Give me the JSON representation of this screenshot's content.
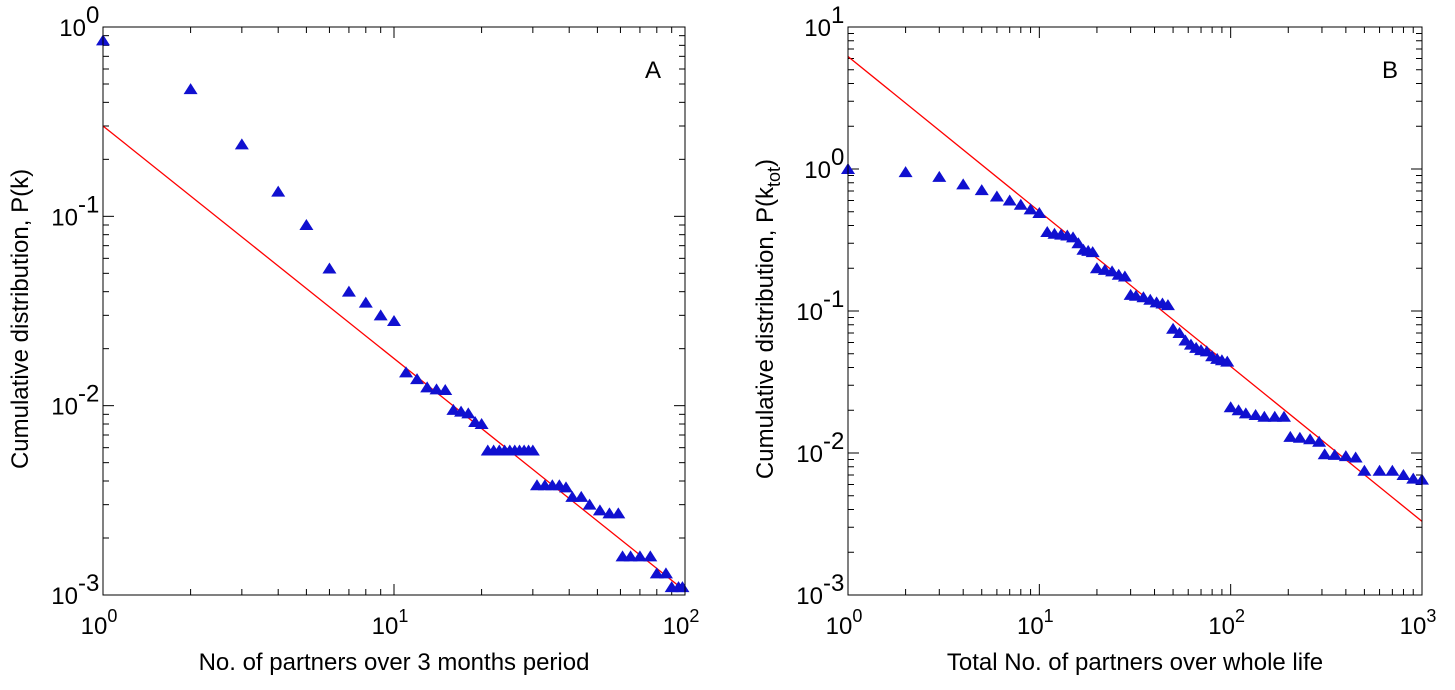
{
  "chart_data": [
    {
      "type": "scatter",
      "panel_label": "A",
      "xlabel": "No. of partners over 3 months period",
      "ylabel": "Cumulative distribution, P(k)",
      "xscale": "log",
      "yscale": "log",
      "xlim": [
        1,
        100
      ],
      "ylim": [
        0.001,
        1
      ],
      "xticks": [
        {
          "base": "10",
          "exp": "0"
        },
        {
          "base": "10",
          "exp": "1"
        },
        {
          "base": "10",
          "exp": "2"
        }
      ],
      "yticks": [
        {
          "base": "10",
          "exp": "-3"
        },
        {
          "base": "10",
          "exp": "-2"
        },
        {
          "base": "10",
          "exp": "-1"
        },
        {
          "base": "10",
          "exp": "0"
        }
      ],
      "marker_color": "#1010d0",
      "line_color": "#ff0000",
      "fit_line": {
        "x": [
          1,
          100
        ],
        "y": [
          0.3,
          0.00105
        ]
      },
      "points": [
        [
          1,
          0.85
        ],
        [
          2,
          0.47
        ],
        [
          3,
          0.24
        ],
        [
          4,
          0.135
        ],
        [
          5,
          0.09
        ],
        [
          6,
          0.053
        ],
        [
          7,
          0.04
        ],
        [
          8,
          0.035
        ],
        [
          9,
          0.03
        ],
        [
          10,
          0.028
        ],
        [
          11,
          0.015
        ],
        [
          12,
          0.0138
        ],
        [
          13,
          0.0125
        ],
        [
          14,
          0.0122
        ],
        [
          15,
          0.0121
        ],
        [
          16,
          0.0095
        ],
        [
          17,
          0.0093
        ],
        [
          18,
          0.0091
        ],
        [
          19,
          0.0082
        ],
        [
          20,
          0.008
        ],
        [
          21,
          0.0058
        ],
        [
          22,
          0.0058
        ],
        [
          23,
          0.0058
        ],
        [
          24,
          0.0058
        ],
        [
          25,
          0.0058
        ],
        [
          26,
          0.0058
        ],
        [
          27,
          0.0058
        ],
        [
          28,
          0.0058
        ],
        [
          29,
          0.0058
        ],
        [
          30,
          0.0058
        ],
        [
          31,
          0.0038
        ],
        [
          33,
          0.0038
        ],
        [
          35,
          0.0038
        ],
        [
          37,
          0.0038
        ],
        [
          39,
          0.0037
        ],
        [
          41,
          0.0033
        ],
        [
          44,
          0.0033
        ],
        [
          47,
          0.003
        ],
        [
          51,
          0.0028
        ],
        [
          55,
          0.0027
        ],
        [
          59,
          0.0027
        ],
        [
          61,
          0.0016
        ],
        [
          65,
          0.0016
        ],
        [
          70,
          0.0016
        ],
        [
          76,
          0.0016
        ],
        [
          80,
          0.0013
        ],
        [
          86,
          0.0013
        ],
        [
          90,
          0.0011
        ],
        [
          95,
          0.0011
        ],
        [
          98,
          0.0011
        ]
      ]
    },
    {
      "type": "scatter",
      "panel_label": "B",
      "xlabel": "Total No. of partners over whole life",
      "ylabel": "Cumulative distribution, P(k",
      "ylabel_sub": "tot",
      "ylabel_end": ")",
      "xscale": "log",
      "yscale": "log",
      "xlim": [
        1,
        1000
      ],
      "ylim": [
        0.001,
        10
      ],
      "xticks": [
        {
          "base": "10",
          "exp": "0"
        },
        {
          "base": "10",
          "exp": "1"
        },
        {
          "base": "10",
          "exp": "2"
        },
        {
          "base": "10",
          "exp": "3"
        }
      ],
      "yticks": [
        {
          "base": "10",
          "exp": "-3"
        },
        {
          "base": "10",
          "exp": "-2"
        },
        {
          "base": "10",
          "exp": "-1"
        },
        {
          "base": "10",
          "exp": "0"
        },
        {
          "base": "10",
          "exp": "1"
        }
      ],
      "marker_color": "#1010d0",
      "line_color": "#ff0000",
      "fit_line": {
        "x": [
          1,
          1000
        ],
        "y": [
          6.2,
          0.0033
        ]
      },
      "points": [
        [
          1,
          1.0
        ],
        [
          2,
          0.95
        ],
        [
          3,
          0.88
        ],
        [
          4,
          0.78
        ],
        [
          5,
          0.71
        ],
        [
          6,
          0.64
        ],
        [
          7,
          0.6
        ],
        [
          8,
          0.56
        ],
        [
          9,
          0.52
        ],
        [
          10,
          0.49
        ],
        [
          11,
          0.36
        ],
        [
          12,
          0.35
        ],
        [
          13,
          0.345
        ],
        [
          14,
          0.34
        ],
        [
          15,
          0.33
        ],
        [
          16,
          0.3
        ],
        [
          17,
          0.27
        ],
        [
          18,
          0.265
        ],
        [
          19,
          0.26
        ],
        [
          20,
          0.2
        ],
        [
          22,
          0.195
        ],
        [
          24,
          0.19
        ],
        [
          26,
          0.18
        ],
        [
          28,
          0.175
        ],
        [
          30,
          0.13
        ],
        [
          32,
          0.128
        ],
        [
          35,
          0.125
        ],
        [
          38,
          0.12
        ],
        [
          41,
          0.115
        ],
        [
          44,
          0.113
        ],
        [
          47,
          0.11
        ],
        [
          50,
          0.075
        ],
        [
          54,
          0.07
        ],
        [
          58,
          0.062
        ],
        [
          62,
          0.058
        ],
        [
          66,
          0.055
        ],
        [
          70,
          0.053
        ],
        [
          75,
          0.052
        ],
        [
          80,
          0.048
        ],
        [
          85,
          0.046
        ],
        [
          90,
          0.045
        ],
        [
          96,
          0.044
        ],
        [
          100,
          0.021
        ],
        [
          110,
          0.02
        ],
        [
          120,
          0.019
        ],
        [
          135,
          0.0185
        ],
        [
          150,
          0.018
        ],
        [
          170,
          0.018
        ],
        [
          190,
          0.018
        ],
        [
          205,
          0.013
        ],
        [
          230,
          0.0128
        ],
        [
          260,
          0.0125
        ],
        [
          290,
          0.012
        ],
        [
          310,
          0.0098
        ],
        [
          350,
          0.0097
        ],
        [
          400,
          0.0095
        ],
        [
          450,
          0.0093
        ],
        [
          500,
          0.0075
        ],
        [
          600,
          0.0075
        ],
        [
          700,
          0.0075
        ],
        [
          800,
          0.007
        ],
        [
          900,
          0.0066
        ],
        [
          1000,
          0.0065
        ]
      ]
    }
  ]
}
